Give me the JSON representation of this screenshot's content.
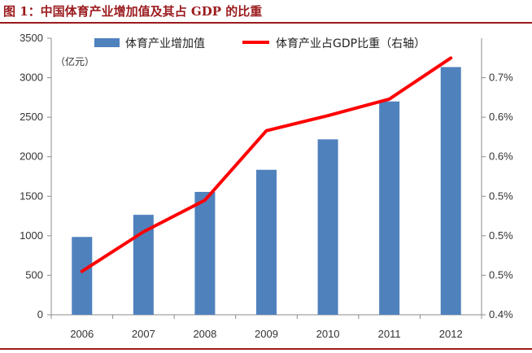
{
  "figure": {
    "title": "图 1：中国体育产业增加值及其占 GDP 的比重",
    "title_color": "#9b1b1e"
  },
  "chart_data": {
    "type": "bar+line",
    "categories": [
      "2006",
      "2007",
      "2008",
      "2009",
      "2010",
      "2011",
      "2012"
    ],
    "series": [
      {
        "name": "体育产业增加值",
        "type": "bar",
        "axis": "left",
        "color": "#4f81bd",
        "values": [
          985,
          1265,
          1555,
          1835,
          2220,
          2700,
          3135
        ]
      },
      {
        "name": "体育产业占GDP比重（右轴）",
        "type": "line",
        "axis": "right",
        "color": "#ff0000",
        "values": [
          0.455,
          0.505,
          0.545,
          0.633,
          0.652,
          0.673,
          0.725
        ]
      }
    ],
    "y_left": {
      "unit_label": "（亿元）",
      "ylim": [
        0,
        3500
      ],
      "ticks": [
        0,
        500,
        1000,
        1500,
        2000,
        2500,
        3000,
        3500
      ]
    },
    "y_right": {
      "ylim": [
        0.4,
        0.75
      ],
      "tick_values": [
        0.4,
        0.45,
        0.5,
        0.55,
        0.6,
        0.65,
        0.7
      ],
      "tick_labels": [
        "0.4%",
        "0.5%",
        "0.5%",
        "0.5%",
        "0.6%",
        "0.6%",
        "0.7%"
      ]
    },
    "grid": false,
    "legend_position": "top"
  }
}
